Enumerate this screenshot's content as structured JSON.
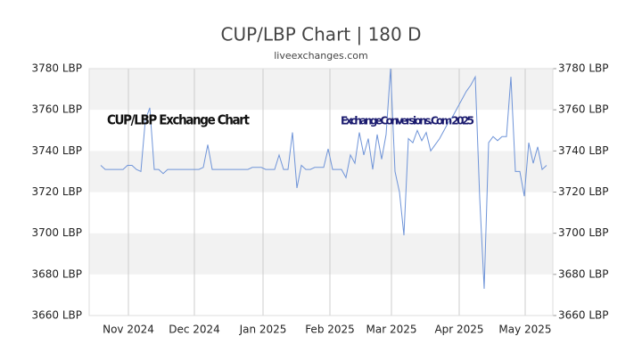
{
  "chart_data": {
    "type": "line",
    "title": "CUP/LBP Chart | 180 D",
    "subtitle": "liveexchanges.com",
    "annotations": [
      "CUP/LBP Exchange Chart",
      "ExchangeConversions.Com 2025"
    ],
    "series": [
      {
        "name": "CUP/LBP",
        "color": "#6f94d8",
        "values": [
          3733,
          3731,
          3731,
          3731,
          3731,
          3731,
          3733,
          3733,
          3731,
          3730,
          3755,
          3761,
          3731,
          3731,
          3729,
          3731,
          3731,
          3731,
          3731,
          3731,
          3731,
          3731,
          3731,
          3732,
          3743,
          3731,
          3731,
          3731,
          3731,
          3731,
          3731,
          3731,
          3731,
          3731,
          3732,
          3732,
          3732,
          3731,
          3731,
          3731,
          3738,
          3731,
          3731,
          3749,
          3722,
          3733,
          3731,
          3731,
          3732,
          3732,
          3732,
          3741,
          3731,
          3731,
          3731,
          3727,
          3738,
          3734,
          3749,
          3738,
          3746,
          3731,
          3748,
          3736,
          3748,
          3780,
          3730,
          3720,
          3699,
          3746,
          3744,
          3750,
          3745,
          3749,
          3740,
          3743,
          3746,
          3750,
          3754,
          3757,
          3761,
          3765,
          3769,
          3772,
          3776,
          3717,
          3673,
          3744,
          3747,
          3745,
          3747,
          3747,
          3776,
          3730,
          3730,
          3718,
          3744,
          3734,
          3742,
          3731,
          3733
        ]
      }
    ],
    "xlim": [
      -2.6,
      101.4
    ],
    "xticks": [
      {
        "value": 6.2,
        "label": "Nov 2024"
      },
      {
        "value": 21,
        "label": "Dec 2024"
      },
      {
        "value": 36.4,
        "label": "Jan 2025"
      },
      {
        "value": 51.4,
        "label": "Feb 2025"
      },
      {
        "value": 65.2,
        "label": "Mar 2025"
      },
      {
        "value": 80.4,
        "label": "Apr 2025"
      },
      {
        "value": 95.2,
        "label": "May 2025"
      }
    ],
    "ylim": [
      3660,
      3780
    ],
    "yticks": [
      {
        "value": 3660,
        "label": "3660 LBP"
      },
      {
        "value": 3680,
        "label": "3680 LBP"
      },
      {
        "value": 3700,
        "label": "3700 LBP"
      },
      {
        "value": 3720,
        "label": "3720 LBP"
      },
      {
        "value": 3740,
        "label": "3740 LBP"
      },
      {
        "value": 3760,
        "label": "3760 LBP"
      },
      {
        "value": 3780,
        "label": "3780 LBP"
      }
    ],
    "grid": true
  }
}
